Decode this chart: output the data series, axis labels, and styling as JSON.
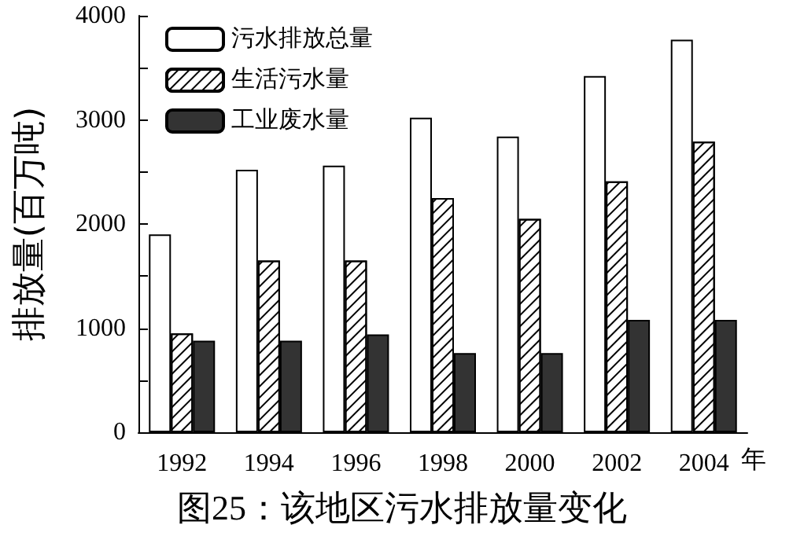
{
  "chart_data": {
    "type": "bar",
    "title": "图25：该地区污水排放量变化",
    "ylabel": "排放量(百万吨)",
    "xlabel": "年",
    "categories": [
      "1992",
      "1994",
      "1996",
      "1998",
      "2000",
      "2002",
      "2004"
    ],
    "series": [
      {
        "name": "污水排放总量",
        "color": "#ffffff",
        "values": [
          1900,
          2520,
          2560,
          3020,
          2840,
          3420,
          3770
        ]
      },
      {
        "name": "生活污水量",
        "color": "#ffffff",
        "values": [
          950,
          1650,
          1650,
          2250,
          2050,
          2410,
          2790
        ]
      },
      {
        "name": "工业废水量",
        "color": "#333333",
        "values": [
          880,
          880,
          940,
          760,
          760,
          1080,
          1080
        ]
      }
    ],
    "ylim": [
      0,
      4000
    ],
    "yticks": [
      0,
      {
        "value": 500,
        "label": null
      },
      1000,
      {
        "value": 1500,
        "label": null
      },
      2000,
      {
        "value": 2500,
        "label": null
      },
      3000,
      {
        "value": 3500,
        "label": null
      },
      4000
    ],
    "grid": false,
    "legend": "top left"
  }
}
